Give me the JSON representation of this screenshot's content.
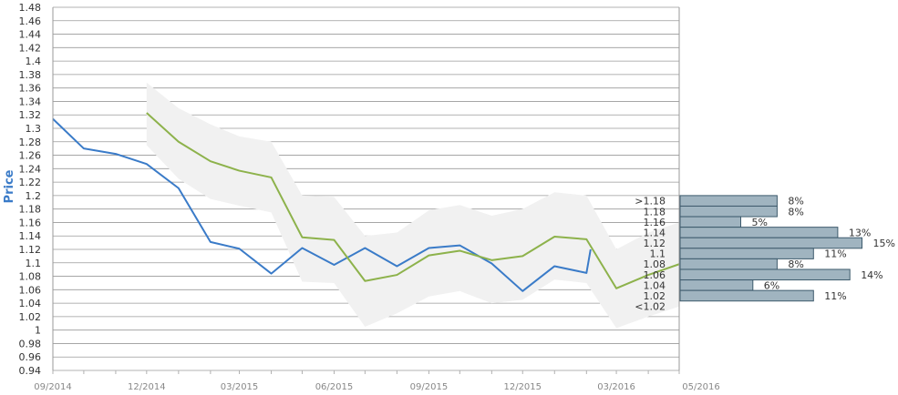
{
  "chart_data": {
    "type": "line",
    "ylabel": "Price",
    "ylim": [
      0.94,
      1.48
    ],
    "y_ticks": [
      "0.94",
      "0.96",
      "0.98",
      "1",
      "1.02",
      "1.04",
      "1.06",
      "1.08",
      "1.1",
      "1.12",
      "1.14",
      "1.16",
      "1.18",
      "1.2",
      "1.22",
      "1.24",
      "1.26",
      "1.28",
      "1.3",
      "1.32",
      "1.34",
      "1.36",
      "1.38",
      "1.4",
      "1.42",
      "1.44",
      "1.46",
      "1.48"
    ],
    "x_range": [
      "2014-09-01",
      "2016-05-01"
    ],
    "x_ticks": [
      {
        "label": "09/2014",
        "date": "2014-09-01"
      },
      {
        "label": "12/2014",
        "date": "2014-12-01"
      },
      {
        "label": "03/2015",
        "date": "2015-03-01"
      },
      {
        "label": "06/2015",
        "date": "2015-06-01"
      },
      {
        "label": "09/2015",
        "date": "2015-09-01"
      },
      {
        "label": "12/2015",
        "date": "2015-12-01"
      },
      {
        "label": "03/2016",
        "date": "2016-03-01"
      },
      {
        "label": "05/2016",
        "date": "2016-05-01"
      }
    ],
    "grid": true,
    "series": [
      {
        "color": "#3a7bc8",
        "points": [
          [
            "2014-09-01",
            1.314
          ],
          [
            "2014-10-01",
            1.27
          ],
          [
            "2014-11-01",
            1.262
          ],
          [
            "2014-12-01",
            1.247
          ],
          [
            "2015-01-01",
            1.211
          ],
          [
            "2015-02-01",
            1.131
          ],
          [
            "2015-03-01",
            1.121
          ],
          [
            "2015-04-01",
            1.084
          ],
          [
            "2015-05-01",
            1.122
          ],
          [
            "2015-06-01",
            1.097
          ],
          [
            "2015-07-01",
            1.122
          ],
          [
            "2015-08-01",
            1.095
          ],
          [
            "2015-09-01",
            1.122
          ],
          [
            "2015-10-01",
            1.126
          ],
          [
            "2015-11-01",
            1.099
          ],
          [
            "2015-12-01",
            1.058
          ],
          [
            "2016-01-01",
            1.095
          ],
          [
            "2016-02-01",
            1.085
          ],
          [
            "2016-02-05",
            1.12
          ]
        ]
      },
      {
        "color": "#8db24b",
        "points": [
          [
            "2014-12-01",
            1.323
          ],
          [
            "2015-01-01",
            1.28
          ],
          [
            "2015-02-01",
            1.251
          ],
          [
            "2015-03-01",
            1.237
          ],
          [
            "2015-04-01",
            1.227
          ],
          [
            "2015-05-01",
            1.138
          ],
          [
            "2015-06-01",
            1.134
          ],
          [
            "2015-07-01",
            1.073
          ],
          [
            "2015-08-01",
            1.082
          ],
          [
            "2015-09-01",
            1.111
          ],
          [
            "2015-10-01",
            1.118
          ],
          [
            "2015-11-01",
            1.104
          ],
          [
            "2015-12-01",
            1.11
          ],
          [
            "2016-01-01",
            1.139
          ],
          [
            "2016-02-01",
            1.135
          ],
          [
            "2016-03-01",
            1.062
          ],
          [
            "2016-04-01",
            1.082
          ],
          [
            "2016-05-01",
            1.098
          ]
        ]
      }
    ],
    "band": {
      "color": "#e6e6e6",
      "upper": [
        [
          "2014-12-01",
          1.368
        ],
        [
          "2015-01-01",
          1.33
        ],
        [
          "2015-02-01",
          1.306
        ],
        [
          "2015-03-01",
          1.288
        ],
        [
          "2015-04-01",
          1.28
        ],
        [
          "2015-05-01",
          1.2
        ],
        [
          "2015-06-01",
          1.198
        ],
        [
          "2015-07-01",
          1.14
        ],
        [
          "2015-08-01",
          1.145
        ],
        [
          "2015-09-01",
          1.178
        ],
        [
          "2015-10-01",
          1.186
        ],
        [
          "2015-11-01",
          1.17
        ],
        [
          "2015-12-01",
          1.18
        ],
        [
          "2016-01-01",
          1.205
        ],
        [
          "2016-02-01",
          1.2
        ],
        [
          "2016-03-01",
          1.12
        ],
        [
          "2016-04-01",
          1.145
        ],
        [
          "2016-05-01",
          1.16
        ]
      ],
      "lower": [
        [
          "2014-12-01",
          1.275
        ],
        [
          "2015-01-01",
          1.225
        ],
        [
          "2015-02-01",
          1.195
        ],
        [
          "2015-03-01",
          1.185
        ],
        [
          "2015-04-01",
          1.175
        ],
        [
          "2015-05-01",
          1.072
        ],
        [
          "2015-06-01",
          1.07
        ],
        [
          "2015-07-01",
          1.005
        ],
        [
          "2015-08-01",
          1.025
        ],
        [
          "2015-09-01",
          1.05
        ],
        [
          "2015-10-01",
          1.058
        ],
        [
          "2015-11-01",
          1.04
        ],
        [
          "2015-12-01",
          1.045
        ],
        [
          "2016-01-01",
          1.075
        ],
        [
          "2016-02-01",
          1.07
        ],
        [
          "2016-03-01",
          1.003
        ],
        [
          "2016-04-01",
          1.02
        ],
        [
          "2016-05-01",
          1.035
        ]
      ]
    },
    "distribution": {
      "color": "#a0b4c0",
      "bins": [
        {
          "label": ">1.18",
          "pct": "8%",
          "value": 8
        },
        {
          "label": "1.18",
          "pct": "8%",
          "value": 8
        },
        {
          "label": "1.16",
          "pct": "5%",
          "value": 5
        },
        {
          "label": "1.14",
          "pct": "13%",
          "value": 13
        },
        {
          "label": "1.12",
          "pct": "15%",
          "value": 15
        },
        {
          "label": "1.1",
          "pct": "11%",
          "value": 11
        },
        {
          "label": "1.08",
          "pct": "8%",
          "value": 8
        },
        {
          "label": "1.06",
          "pct": "14%",
          "value": 14
        },
        {
          "label": "1.04",
          "pct": "6%",
          "value": 6
        },
        {
          "label": "1.02",
          "pct": "11%",
          "value": 11
        },
        {
          "label": "<1.02",
          "pct": "",
          "value": 0
        }
      ]
    }
  }
}
